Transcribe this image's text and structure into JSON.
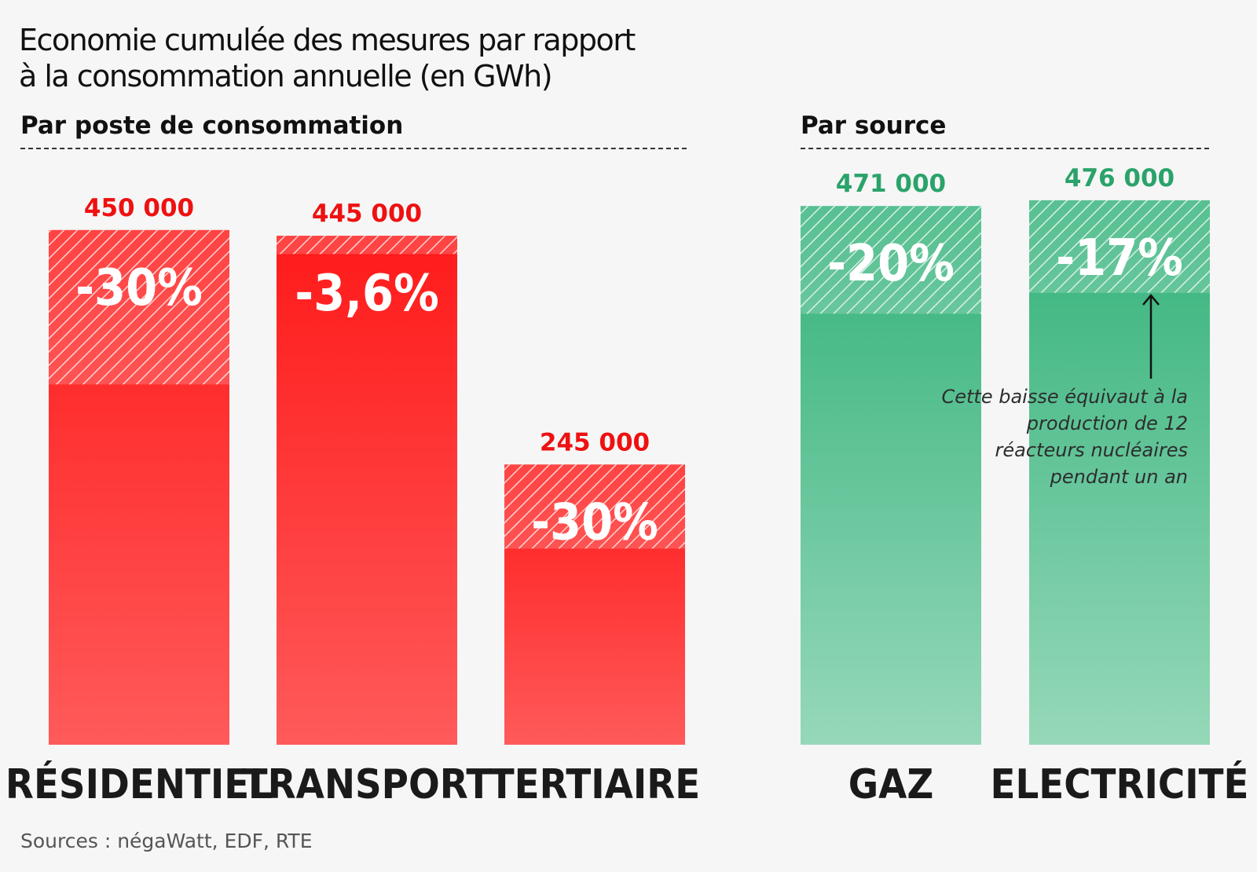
{
  "title_lines": [
    "Economie cumulée des mesures par rapport",
    "à la consommation annuelle (en GWh)"
  ],
  "section_left": "Par poste de consommation",
  "section_right": "Par source",
  "annotation": "Cette baisse équivaut à la production de 12 réacteurs nucléaires pendant un an",
  "source": "Sources : négaWatt, EDF, RTE",
  "colors": {
    "red": "#ff1a1a",
    "red_light": "#ff5a5a",
    "green": "#33b27a",
    "green_light": "#96d8b9",
    "red_label": "#ee1111",
    "green_label": "#2aa36b"
  },
  "chart_data": [
    {
      "type": "bar",
      "group": "Par poste de consommation",
      "categories": [
        "RÉSIDENTIEL",
        "TRANSPORT",
        "TERTIAIRE"
      ],
      "values": [
        450000,
        445000,
        245000
      ],
      "value_labels": [
        "450 000",
        "445 000",
        "245 000"
      ],
      "savings_pct": [
        30,
        3.6,
        30
      ],
      "savings_labels": [
        "-30%",
        "-3,6%",
        "-30%"
      ],
      "color": "red",
      "unit": "GWh"
    },
    {
      "type": "bar",
      "group": "Par source",
      "categories": [
        "GAZ",
        "ELECTRICITÉ"
      ],
      "values": [
        471000,
        476000
      ],
      "value_labels": [
        "471 000",
        "476 000"
      ],
      "savings_pct": [
        20,
        17
      ],
      "savings_labels": [
        "-20%",
        "-17%"
      ],
      "color": "green",
      "unit": "GWh"
    }
  ]
}
